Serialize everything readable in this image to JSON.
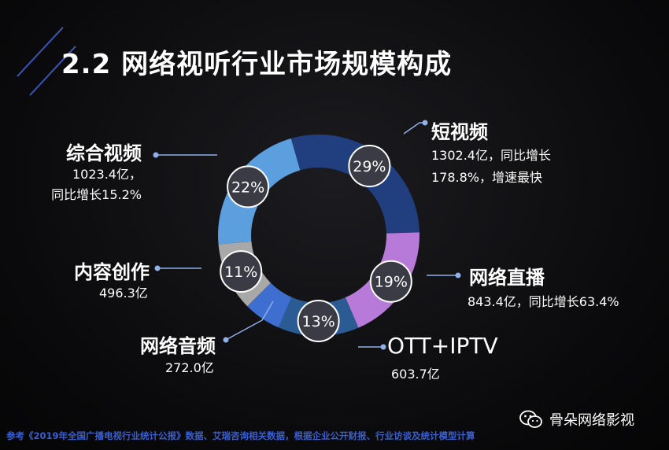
{
  "title": "2.2 网络视听行业市场规模构成",
  "chart_data": {
    "type": "pie",
    "title": "2.2 网络视听行业市场规模构成",
    "categories": [
      "短视频",
      "网络直播",
      "OTT+IPTV",
      "网络音频",
      "内容创作",
      "综合视频"
    ],
    "values": [
      29,
      19,
      13,
      6,
      11,
      22
    ],
    "labels": [
      "29%",
      "19%",
      "13%",
      "",
      "11%",
      "22%"
    ],
    "colors": [
      "#213f7e",
      "#b87ad8",
      "#2a5c93",
      "#3e6fd0",
      "#a8a8a8",
      "#5b9fde"
    ],
    "descriptions": [
      [
        "1302.4亿，同比增长",
        "178.8%，增速最快"
      ],
      [
        "843.4亿，同比增长63.4%"
      ],
      [
        "603.7亿"
      ],
      [
        "272.0亿"
      ],
      [
        "496.3亿"
      ],
      [
        "1023.4亿，",
        "同比增长15.2%"
      ]
    ]
  },
  "footer": "参考《2019年全国广播电视行业统计公报》数据、艾瑞咨询相关数据，根据企业公开财报、行业访谈及统计模型计算",
  "brand": "骨朵网络影视",
  "brand_icon": "wechat-icon"
}
